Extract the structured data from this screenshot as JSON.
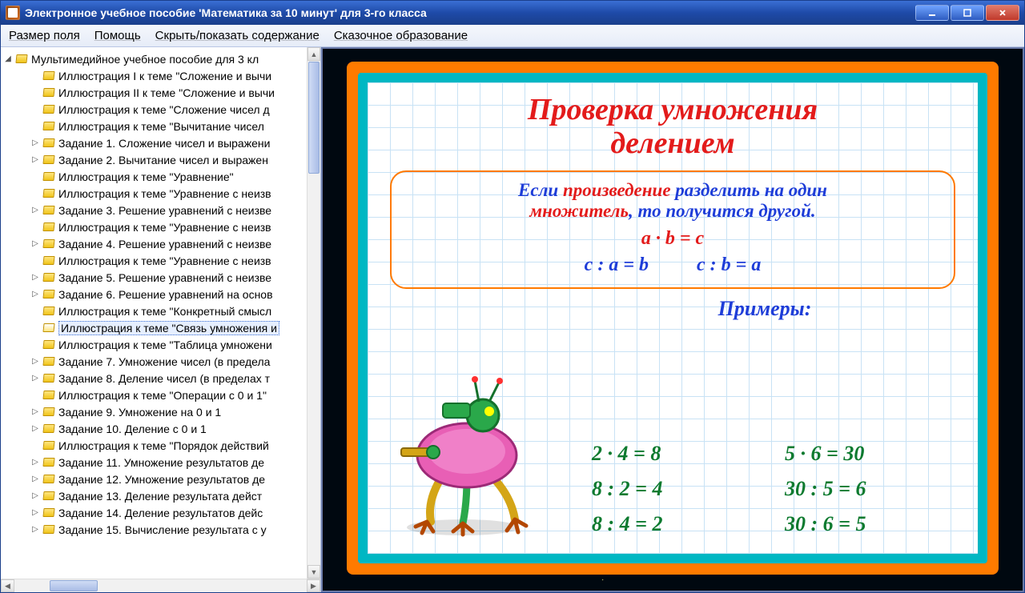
{
  "window_title": "Электронное учебное пособие 'Математика за 10 минут' для 3-го класса",
  "menus": [
    "Размер поля",
    "Помощь",
    "Скрыть/показать содержание",
    "Сказочное образование"
  ],
  "tree_root": "Мультимедийное учебное пособие для 3 кл",
  "tree_items": [
    {
      "label": "Иллюстрация I к теме \"Сложение и вычи",
      "expander": ""
    },
    {
      "label": "Иллюстрация II к теме \"Сложение и вычи",
      "expander": ""
    },
    {
      "label": "Иллюстрация к теме \"Сложение чисел д",
      "expander": ""
    },
    {
      "label": "Иллюстрация к теме \"Вычитание чисел ",
      "expander": ""
    },
    {
      "label": "Задание 1. Сложение чисел и выражени",
      "expander": "▷"
    },
    {
      "label": "Задание 2. Вычитание чисел и выражен",
      "expander": "▷"
    },
    {
      "label": "Иллюстрация к теме \"Уравнение\"",
      "expander": ""
    },
    {
      "label": "Иллюстрация к теме \"Уравнение с неизв",
      "expander": ""
    },
    {
      "label": "Задание 3. Решение уравнений с неизве",
      "expander": "▷"
    },
    {
      "label": "Иллюстрация к теме \"Уравнение с неизв",
      "expander": ""
    },
    {
      "label": "Задание 4. Решение уравнений с неизве",
      "expander": "▷"
    },
    {
      "label": "Иллюстрация к теме \"Уравнение с неизв",
      "expander": ""
    },
    {
      "label": "Задание 5. Решение уравнений с неизве",
      "expander": "▷"
    },
    {
      "label": "Задание 6. Решение уравнений на основ",
      "expander": "▷"
    },
    {
      "label": "Иллюстрация к теме \"Конкретный смысл",
      "expander": ""
    },
    {
      "label": "Иллюстрация к теме \"Связь умножения и",
      "expander": "",
      "selected": true,
      "open": true
    },
    {
      "label": "Иллюстрация к теме \"Таблица умножени",
      "expander": ""
    },
    {
      "label": "Задание 7. Умножение чисел (в предела",
      "expander": "▷"
    },
    {
      "label": "Задание 8. Деление чисел (в пределах т",
      "expander": "▷"
    },
    {
      "label": "Иллюстрация к теме \"Операции с 0 и 1\"",
      "expander": ""
    },
    {
      "label": "Задание 9. Умножение на 0 и 1",
      "expander": "▷"
    },
    {
      "label": "Задание 10. Деление с 0 и 1",
      "expander": "▷"
    },
    {
      "label": "Иллюстрация к теме \"Порядок действий",
      "expander": ""
    },
    {
      "label": "Задание 11. Умножение результатов де",
      "expander": "▷"
    },
    {
      "label": "Задание 12. Умножение результатов де",
      "expander": "▷"
    },
    {
      "label": "Задание 13. Деление результата дейст",
      "expander": "▷"
    },
    {
      "label": "Задание 14. Деление результатов дейс",
      "expander": "▷"
    },
    {
      "label": "Задание 15. Вычисление результата с у",
      "expander": "▷"
    }
  ],
  "slide": {
    "title_l1": "Проверка умножения",
    "title_l2": "делением",
    "rule_pre": "Если ",
    "rule_em": "произведение",
    "rule_post1": " разделить на один",
    "rule_l2a": "множитель",
    "rule_l2b": ", то получится другой.",
    "formula_main": "a · b = c",
    "formula_left": "c : a = b",
    "formula_right": "c : b = a",
    "examples_label": "Примеры:",
    "examples": [
      "2 · 4 = 8",
      "5 · 6 = 30",
      "8 : 2 = 4",
      "30 : 5 = 6",
      "8 : 4 = 2",
      "30 : 6 = 5"
    ],
    "colors": {
      "outer_border": "#ff7a00",
      "mid_border": "#00b7c3",
      "title_color": "#e31b1b",
      "accent_blue": "#1e3dd8",
      "example_green": "#0d7a2f",
      "grid_color": "#c8e2f5"
    }
  }
}
